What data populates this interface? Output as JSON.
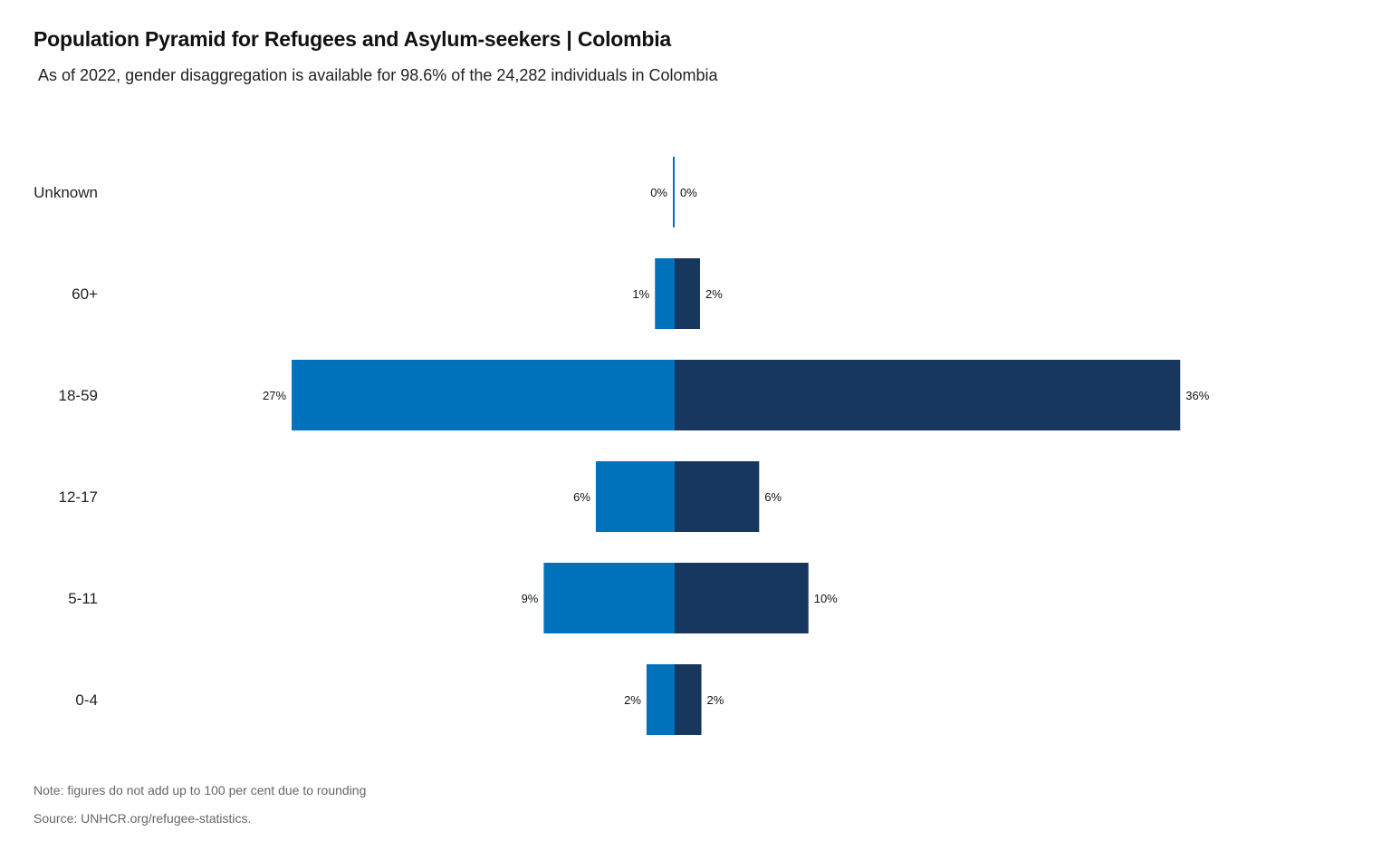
{
  "title": "Population Pyramid for Refugees and Asylum-seekers | Colombia",
  "subtitle": "As of 2022, gender disaggregation is available for 98.6% of the 24,282 individuals in Colombia",
  "note": "Note: figures do not add up to 100 per cent due to rounding",
  "source": "Source: UNHCR.org/refugee-statistics.",
  "colors": {
    "left_series": "#0072bc",
    "right_series": "#18375f",
    "text": "#1a1a1a",
    "footnote": "#666666"
  },
  "chart_data": {
    "type": "bar",
    "orientation": "horizontal-diverging",
    "title": "Population Pyramid for Refugees and Asylum-seekers | Colombia",
    "categories": [
      "Unknown",
      "60+",
      "18-59",
      "12-17",
      "5-11",
      "0-4"
    ],
    "series": [
      {
        "side": "left",
        "color": "#0072bc",
        "values": [
          0,
          1.4,
          27.2,
          5.6,
          9.3,
          2.0
        ],
        "labels": [
          "0%",
          "1%",
          "27%",
          "6%",
          "9%",
          "2%"
        ]
      },
      {
        "side": "right",
        "color": "#18375f",
        "values": [
          0,
          1.8,
          35.9,
          6.0,
          9.5,
          1.9
        ],
        "labels": [
          "0%",
          "2%",
          "36%",
          "6%",
          "10%",
          "2%"
        ]
      }
    ],
    "legend": "none",
    "grid": false
  }
}
